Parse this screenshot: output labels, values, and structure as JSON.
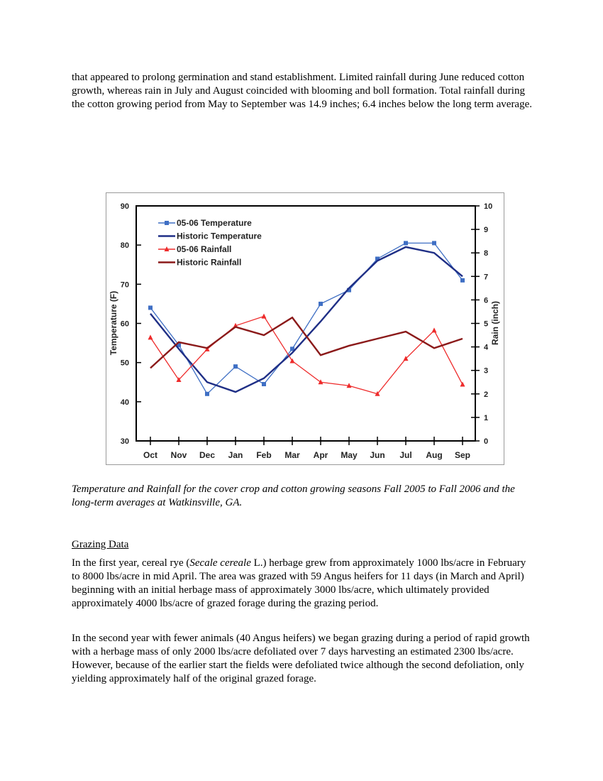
{
  "intro_paragraph": "that appeared to prolong germination and stand establishment.  Limited rainfall during June reduced cotton growth, whereas rain in July and August coincided with blooming and boll formation. Total rainfall during the cotton growing period from May to September was 14.9 inches; 6.4 inches below the long term average.",
  "caption": "Temperature and Rainfall for the cover crop and cotton growing seasons Fall 2005 to Fall 2006 and the long-term averages at Watkinsville, GA.",
  "grazing": {
    "heading": "Grazing Data",
    "para1_pre": "In the first year, cereal rye (",
    "para1_species": "Secale cereale",
    "para1_post": " L.) herbage grew from approximately 1000 lbs/acre in February to 8000 lbs/acre in mid April. The area was grazed with 59 Angus heifers for 11 days (in March and April) beginning with an initial herbage mass of approximately 3000 lbs/acre, which ultimately provided approximately 4000 lbs/acre of grazed forage during the grazing period.",
    "para2": "In the second year with fewer animals (40 Angus heifers) we began grazing during a period of rapid growth with a herbage mass of only 2000 lbs/acre defoliated over 7 days harvesting an estimated 2300 lbs/acre. However, because of the earlier start the fields were defoliated twice although the second defoliation, only yielding approximately half of the original grazed forage."
  },
  "chart_data": {
    "type": "line",
    "categories": [
      "Oct",
      "Nov",
      "Dec",
      "Jan",
      "Feb",
      "Mar",
      "Apr",
      "May",
      "Jun",
      "Jul",
      "Aug",
      "Sep"
    ],
    "ylabel": "Temperature (F)",
    "y2label": "Rain (inch)",
    "ylim": [
      30,
      90
    ],
    "y2lim": [
      0,
      10
    ],
    "yticks": [
      30,
      40,
      50,
      60,
      70,
      80,
      90
    ],
    "y2ticks": [
      0,
      1,
      2,
      3,
      4,
      5,
      6,
      7,
      8,
      9,
      10
    ],
    "legend_position": "top-left",
    "grid": false,
    "series": [
      {
        "name": "05-06 Temperature",
        "axis": "left",
        "color": "#3f6fc4",
        "marker": "square",
        "values": [
          64,
          54.5,
          42,
          49,
          44.5,
          53.5,
          65,
          68.5,
          76.5,
          80.5,
          80.5,
          71
        ]
      },
      {
        "name": "Historic Temperature",
        "axis": "left",
        "color": "#1f2f86",
        "marker": "none",
        "values": [
          62.5,
          53.5,
          45,
          42.5,
          46,
          52.5,
          60.5,
          69,
          76,
          79.5,
          78,
          72
        ]
      },
      {
        "name": "05-06 Rainfall",
        "axis": "right",
        "color": "#ee2b2b",
        "marker": "triangle",
        "values": [
          4.4,
          2.6,
          3.9,
          4.9,
          5.3,
          3.4,
          2.5,
          2.35,
          2.0,
          3.5,
          4.7,
          2.4
        ]
      },
      {
        "name": "Historic Rainfall",
        "axis": "right",
        "color": "#8b1a1a",
        "marker": "none",
        "values": [
          3.1,
          4.2,
          3.95,
          4.85,
          4.5,
          5.25,
          3.65,
          4.05,
          4.35,
          4.65,
          3.95,
          4.35
        ]
      }
    ]
  }
}
